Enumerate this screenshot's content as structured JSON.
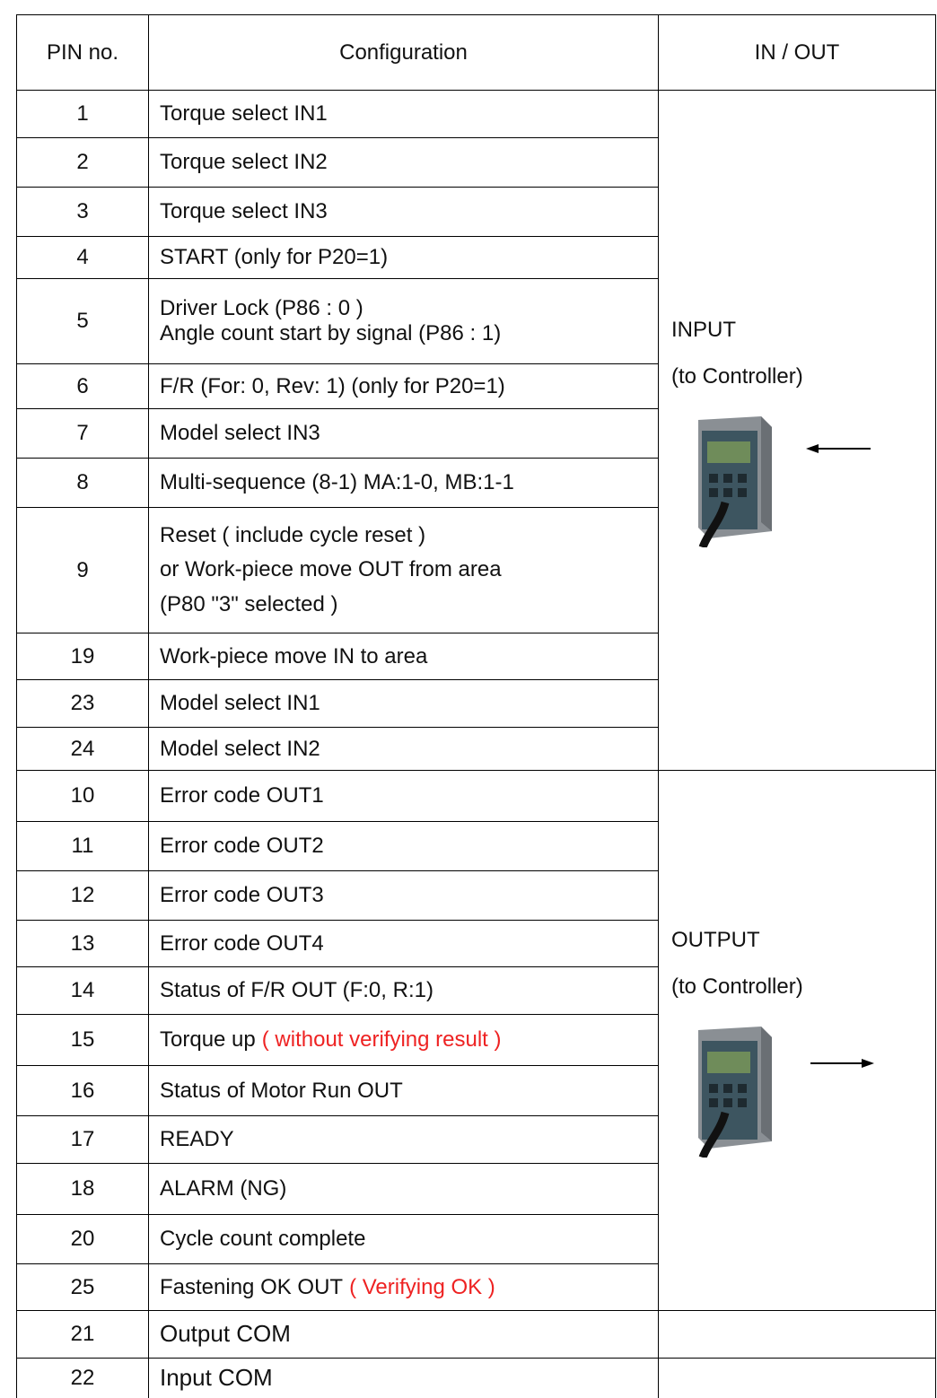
{
  "table": {
    "header": [
      "PIN no.",
      "Configuration",
      "IN / OUT"
    ],
    "groups": [
      {
        "label": "INPUT",
        "sublabel": "(to Controller)",
        "rows": [
          {
            "pin": "1",
            "lines": [
              "Torque select IN1"
            ]
          },
          {
            "pin": "2",
            "lines": [
              "Torque select IN2"
            ]
          },
          {
            "pin": "3",
            "lines": [
              "Torque select IN3"
            ]
          },
          {
            "pin": "4",
            "lines": [
              "START (only for P20=1)"
            ]
          },
          {
            "pin": "5",
            "lines": [
              "Driver Lock (P86 : 0 )",
              "Angle count start by signal (P86 : 1)"
            ]
          },
          {
            "pin": "6",
            "lines": [
              "F/R (For: 0, Rev: 1) (only for P20=1)"
            ]
          },
          {
            "pin": "7",
            "lines": [
              "Model select IN3"
            ]
          },
          {
            "pin": "8",
            "lines": [
              "Multi-sequence (8-1) MA:1-0, MB:1-1"
            ]
          },
          {
            "pin": "9",
            "lines": [
              "Reset ( include cycle reset )",
              "or Work-piece move OUT from area",
              "(P80 \"3\" selected )"
            ]
          },
          {
            "pin": "19",
            "lines": [
              "Work-piece move IN to area"
            ]
          },
          {
            "pin": "23",
            "lines": [
              "Model select IN1"
            ]
          },
          {
            "pin": "24",
            "lines": [
              "Model select IN2"
            ]
          }
        ]
      },
      {
        "label": "OUTPUT",
        "sublabel": "(to Controller)",
        "rows": [
          {
            "pin": "10",
            "lines": [
              "Error code OUT1"
            ]
          },
          {
            "pin": "11",
            "lines": [
              "Error code OUT2"
            ]
          },
          {
            "pin": "12",
            "lines": [
              "Error code OUT3"
            ]
          },
          {
            "pin": "13",
            "lines": [
              "Error code OUT4"
            ]
          },
          {
            "pin": "14",
            "lines": [
              "Status of F/R OUT (F:0, R:1)"
            ]
          },
          {
            "pin": "15",
            "lines": [
              "Torque up"
            ],
            "note": "( without verifying result )"
          },
          {
            "pin": "16",
            "lines": [
              "Status of Motor Run OUT"
            ]
          },
          {
            "pin": "17",
            "lines": [
              "READY"
            ]
          },
          {
            "pin": "18",
            "lines": [
              "ALARM (NG)"
            ]
          },
          {
            "pin": "20",
            "lines": [
              "Cycle count complete"
            ]
          },
          {
            "pin": "25",
            "lines": [
              "Fastening OK OUT"
            ],
            "note": "( Verifying OK )"
          }
        ]
      }
    ],
    "common_rows": [
      {
        "pin": "21",
        "lines": [
          "Output COM"
        ]
      },
      {
        "pin": "22",
        "lines": [
          "Input COM"
        ]
      }
    ]
  }
}
